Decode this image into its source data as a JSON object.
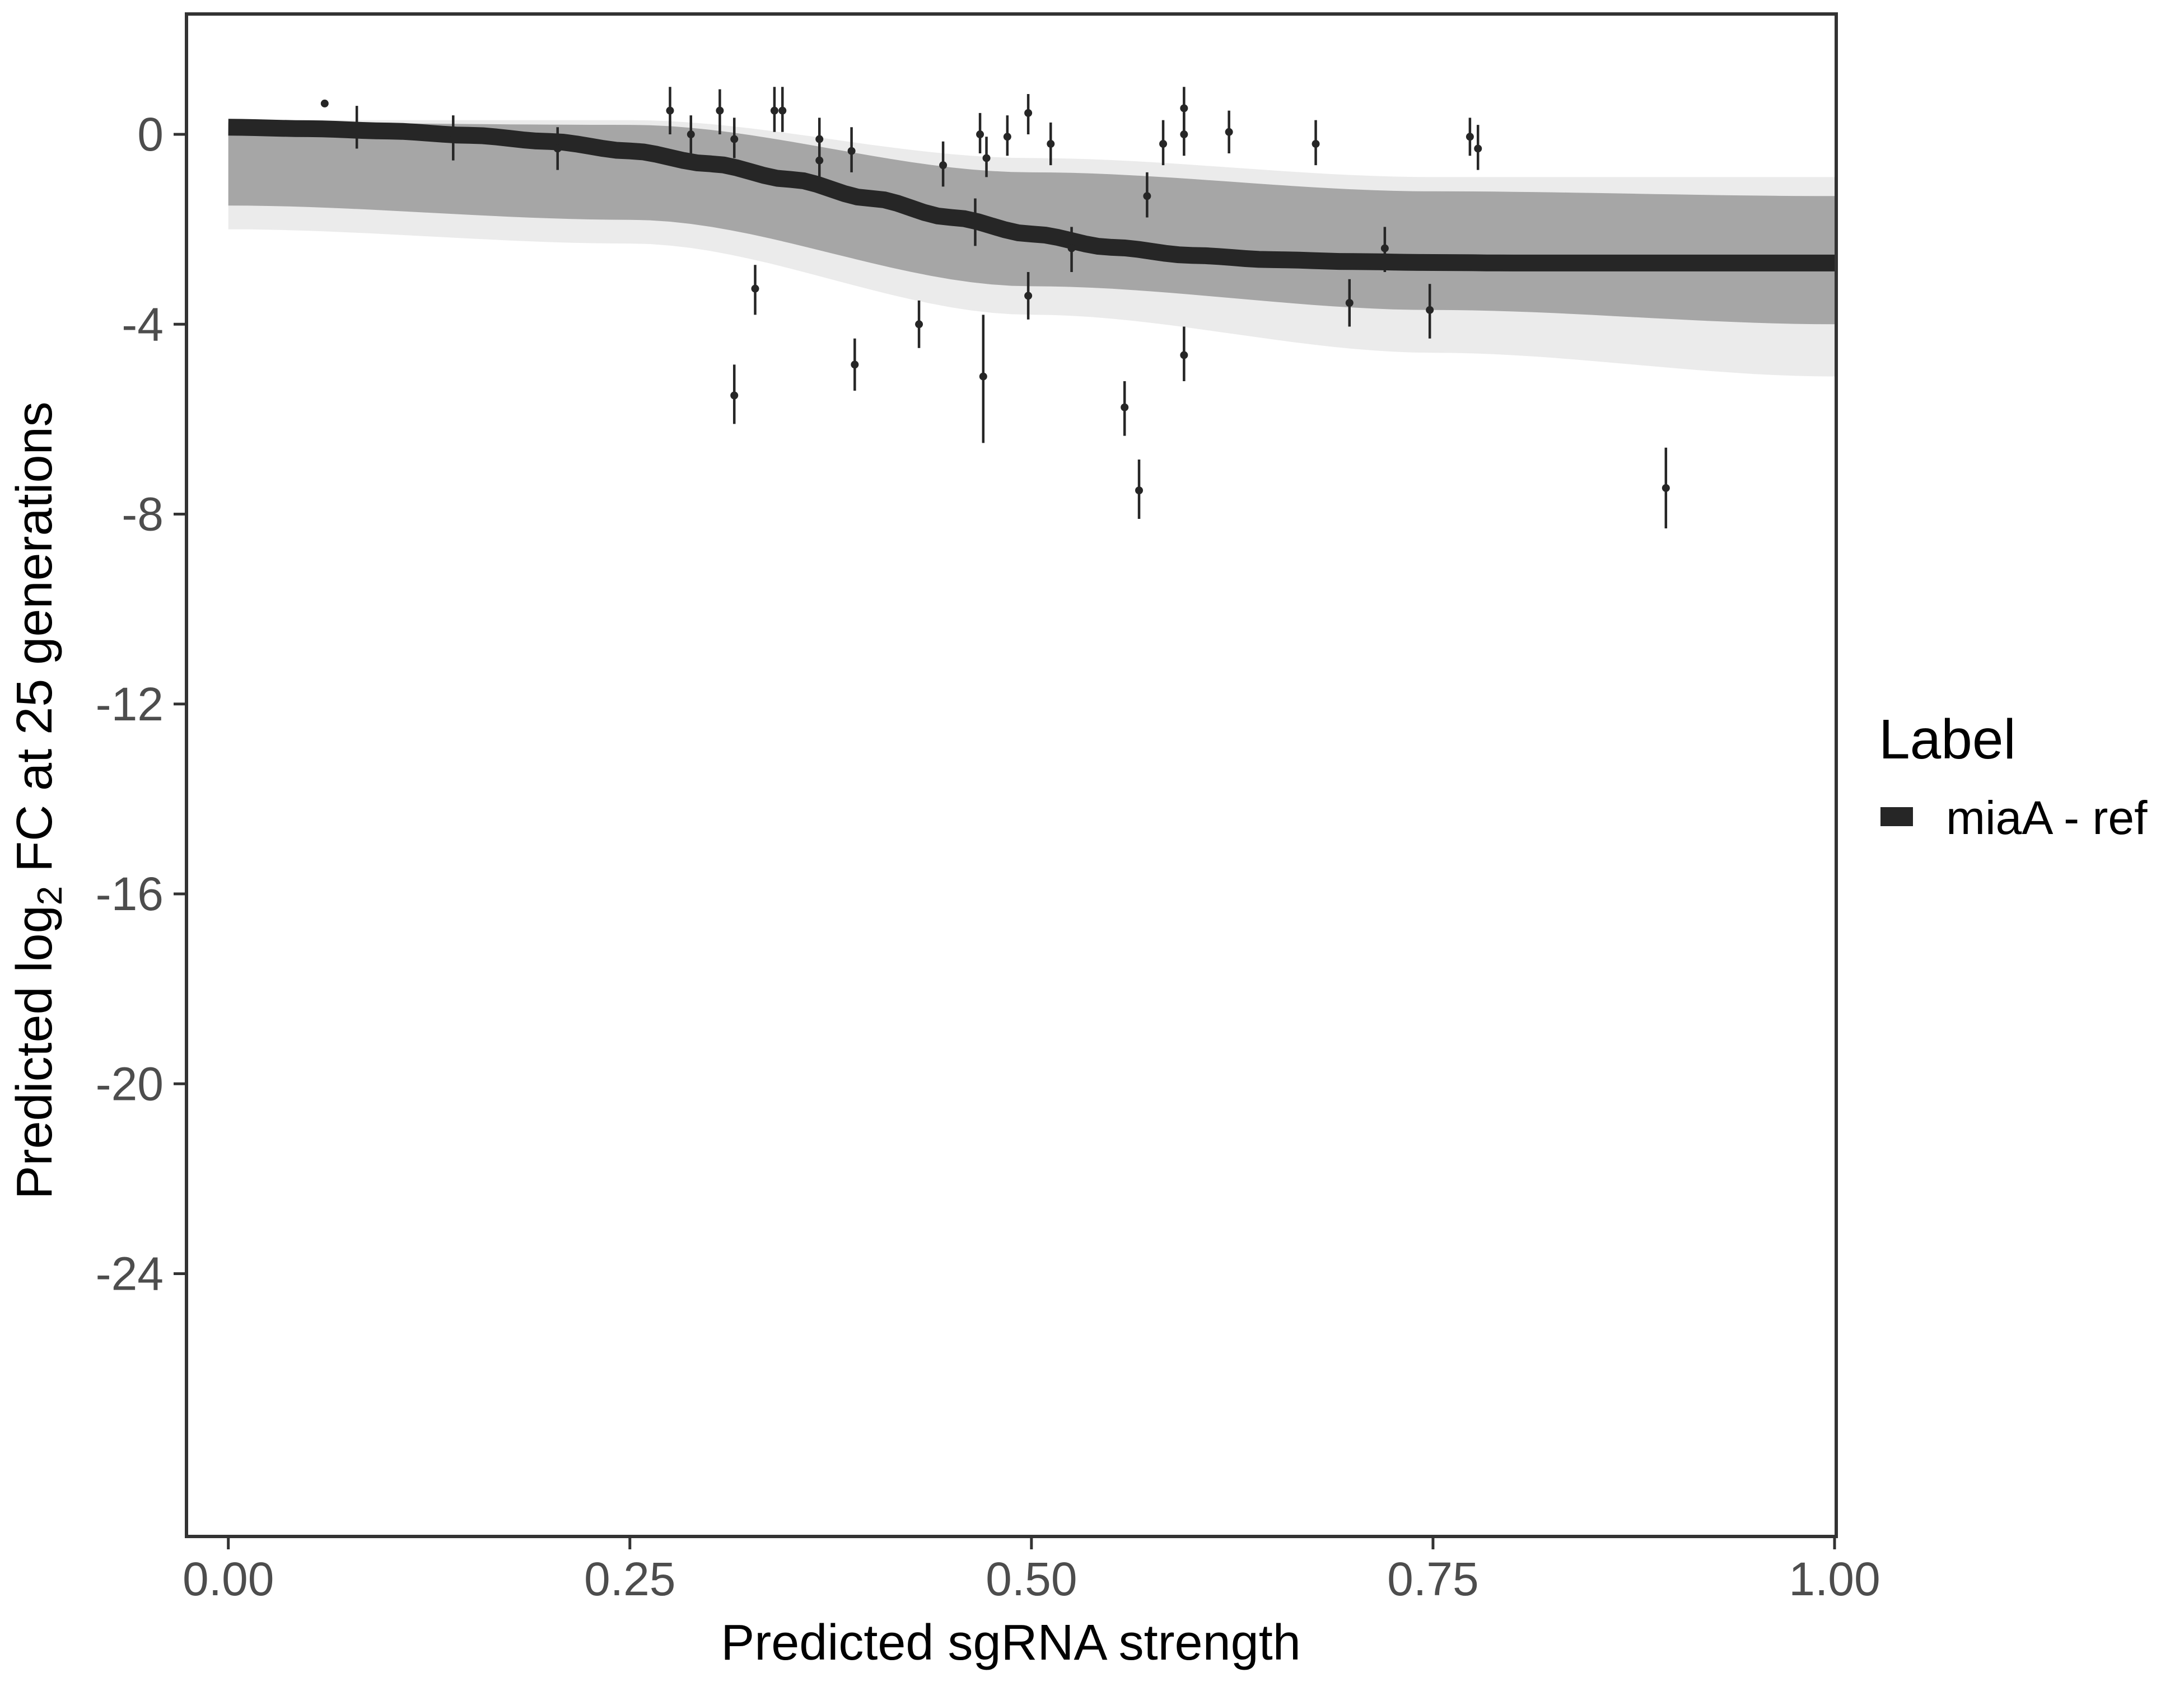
{
  "chart_data": {
    "type": "scatter",
    "xlabel": "Predicted sgRNA strength",
    "ylabel_prefix": "Predicted  log",
    "ylabel_sub": "2",
    "ylabel_suffix": " FC at 25 generations",
    "xlim": [
      -0.025,
      1.0
    ],
    "ylim": [
      -29.5,
      2.5
    ],
    "x_ticks": [
      0.0,
      0.25,
      0.5,
      0.75,
      1.0
    ],
    "x_tick_labels": [
      "0.00",
      "0.25",
      "0.50",
      "0.75",
      "1.00"
    ],
    "y_ticks": [
      0,
      -4,
      -8,
      -12,
      -16,
      -20,
      -24
    ],
    "y_tick_labels": [
      "0",
      "-4",
      "-8",
      "-12",
      "-16",
      "-20",
      "-24"
    ],
    "grid": false,
    "legend": {
      "title": "Label",
      "position": "right",
      "entries": [
        {
          "label": "miaA - ref",
          "color": "#262626"
        }
      ]
    },
    "fit_curve": {
      "name": "miaA - ref",
      "color": "#262626",
      "x": [
        0.0,
        0.05,
        0.1,
        0.15,
        0.2,
        0.25,
        0.3,
        0.35,
        0.4,
        0.45,
        0.5,
        0.55,
        0.6,
        0.65,
        0.7,
        0.75,
        0.8,
        0.85,
        0.9,
        0.95,
        1.0
      ],
      "y": [
        0.15,
        0.12,
        0.07,
        -0.02,
        -0.15,
        -0.35,
        -0.62,
        -0.95,
        -1.35,
        -1.75,
        -2.1,
        -2.38,
        -2.55,
        -2.64,
        -2.68,
        -2.7,
        -2.71,
        -2.71,
        -2.71,
        -2.71,
        -2.71
      ]
    },
    "posterior_band": {
      "color": "#a6a6a6",
      "x": [
        0.0,
        0.25,
        0.5,
        0.75,
        1.0
      ],
      "upper": [
        0.25,
        0.2,
        -0.8,
        -1.2,
        -1.3
      ],
      "lower": [
        -1.5,
        -1.8,
        -3.2,
        -3.7,
        -4.0
      ],
      "outer_upper": [
        0.3,
        0.3,
        -0.5,
        -0.9,
        -0.9
      ],
      "outer_lower": [
        -2.0,
        -2.3,
        -3.8,
        -4.6,
        -5.1
      ]
    },
    "points": [
      {
        "x": 0.06,
        "y": 0.65,
        "lo": 0.65,
        "hi": 0.65
      },
      {
        "x": 0.08,
        "y": 0.1,
        "lo": -0.3,
        "hi": 0.6
      },
      {
        "x": 0.14,
        "y": -0.1,
        "lo": -0.55,
        "hi": 0.4
      },
      {
        "x": 0.205,
        "y": -0.3,
        "lo": -0.75,
        "hi": 0.15
      },
      {
        "x": 0.275,
        "y": 0.5,
        "lo": 0.0,
        "hi": 1.0
      },
      {
        "x": 0.288,
        "y": 0.0,
        "lo": -0.4,
        "hi": 0.4
      },
      {
        "x": 0.306,
        "y": 0.5,
        "lo": 0.0,
        "hi": 0.95
      },
      {
        "x": 0.315,
        "y": -0.1,
        "lo": -0.5,
        "hi": 0.35
      },
      {
        "x": 0.315,
        "y": -5.5,
        "lo": -6.1,
        "hi": -4.85
      },
      {
        "x": 0.328,
        "y": -3.25,
        "lo": -3.8,
        "hi": -2.75
      },
      {
        "x": 0.34,
        "y": 0.5,
        "lo": 0.05,
        "hi": 1.0
      },
      {
        "x": 0.345,
        "y": 0.5,
        "lo": 0.05,
        "hi": 1.0
      },
      {
        "x": 0.368,
        "y": -0.1,
        "lo": -0.5,
        "hi": 0.35
      },
      {
        "x": 0.368,
        "y": -0.55,
        "lo": -0.95,
        "hi": -0.1
      },
      {
        "x": 0.388,
        "y": -0.35,
        "lo": -0.8,
        "hi": 0.15
      },
      {
        "x": 0.39,
        "y": -4.85,
        "lo": -5.4,
        "hi": -4.3
      },
      {
        "x": 0.43,
        "y": -4.0,
        "lo": -4.5,
        "hi": -3.5
      },
      {
        "x": 0.445,
        "y": -0.65,
        "lo": -1.1,
        "hi": -0.15
      },
      {
        "x": 0.465,
        "y": -1.85,
        "lo": -2.35,
        "hi": -1.35
      },
      {
        "x": 0.468,
        "y": 0.0,
        "lo": -0.4,
        "hi": 0.45
      },
      {
        "x": 0.47,
        "y": -5.1,
        "lo": -6.5,
        "hi": -3.8
      },
      {
        "x": 0.472,
        "y": -0.5,
        "lo": -0.9,
        "hi": -0.05
      },
      {
        "x": 0.485,
        "y": -0.05,
        "lo": -0.45,
        "hi": 0.4
      },
      {
        "x": 0.498,
        "y": 0.45,
        "lo": 0.0,
        "hi": 0.85
      },
      {
        "x": 0.498,
        "y": -3.4,
        "lo": -3.9,
        "hi": -2.9
      },
      {
        "x": 0.512,
        "y": -0.2,
        "lo": -0.65,
        "hi": 0.25
      },
      {
        "x": 0.525,
        "y": -2.4,
        "lo": -2.9,
        "hi": -1.95
      },
      {
        "x": 0.558,
        "y": -5.75,
        "lo": -6.35,
        "hi": -5.2
      },
      {
        "x": 0.567,
        "y": -7.5,
        "lo": -8.1,
        "hi": -6.85
      },
      {
        "x": 0.572,
        "y": -1.3,
        "lo": -1.75,
        "hi": -0.8
      },
      {
        "x": 0.582,
        "y": -0.2,
        "lo": -0.65,
        "hi": 0.3
      },
      {
        "x": 0.595,
        "y": 0.55,
        "lo": 0.05,
        "hi": 1.0
      },
      {
        "x": 0.595,
        "y": 0.0,
        "lo": -0.45,
        "hi": 0.45
      },
      {
        "x": 0.595,
        "y": -4.65,
        "lo": -5.2,
        "hi": -4.05
      },
      {
        "x": 0.623,
        "y": 0.05,
        "lo": -0.4,
        "hi": 0.5
      },
      {
        "x": 0.677,
        "y": -0.2,
        "lo": -0.65,
        "hi": 0.3
      },
      {
        "x": 0.698,
        "y": -3.55,
        "lo": -4.05,
        "hi": -3.05
      },
      {
        "x": 0.72,
        "y": -2.4,
        "lo": -2.9,
        "hi": -1.95
      },
      {
        "x": 0.748,
        "y": -3.7,
        "lo": -4.3,
        "hi": -3.15
      },
      {
        "x": 0.773,
        "y": -0.05,
        "lo": -0.45,
        "hi": 0.35
      },
      {
        "x": 0.778,
        "y": -0.3,
        "lo": -0.75,
        "hi": 0.2
      },
      {
        "x": 0.895,
        "y": -7.45,
        "lo": -8.3,
        "hi": -6.6
      }
    ]
  }
}
